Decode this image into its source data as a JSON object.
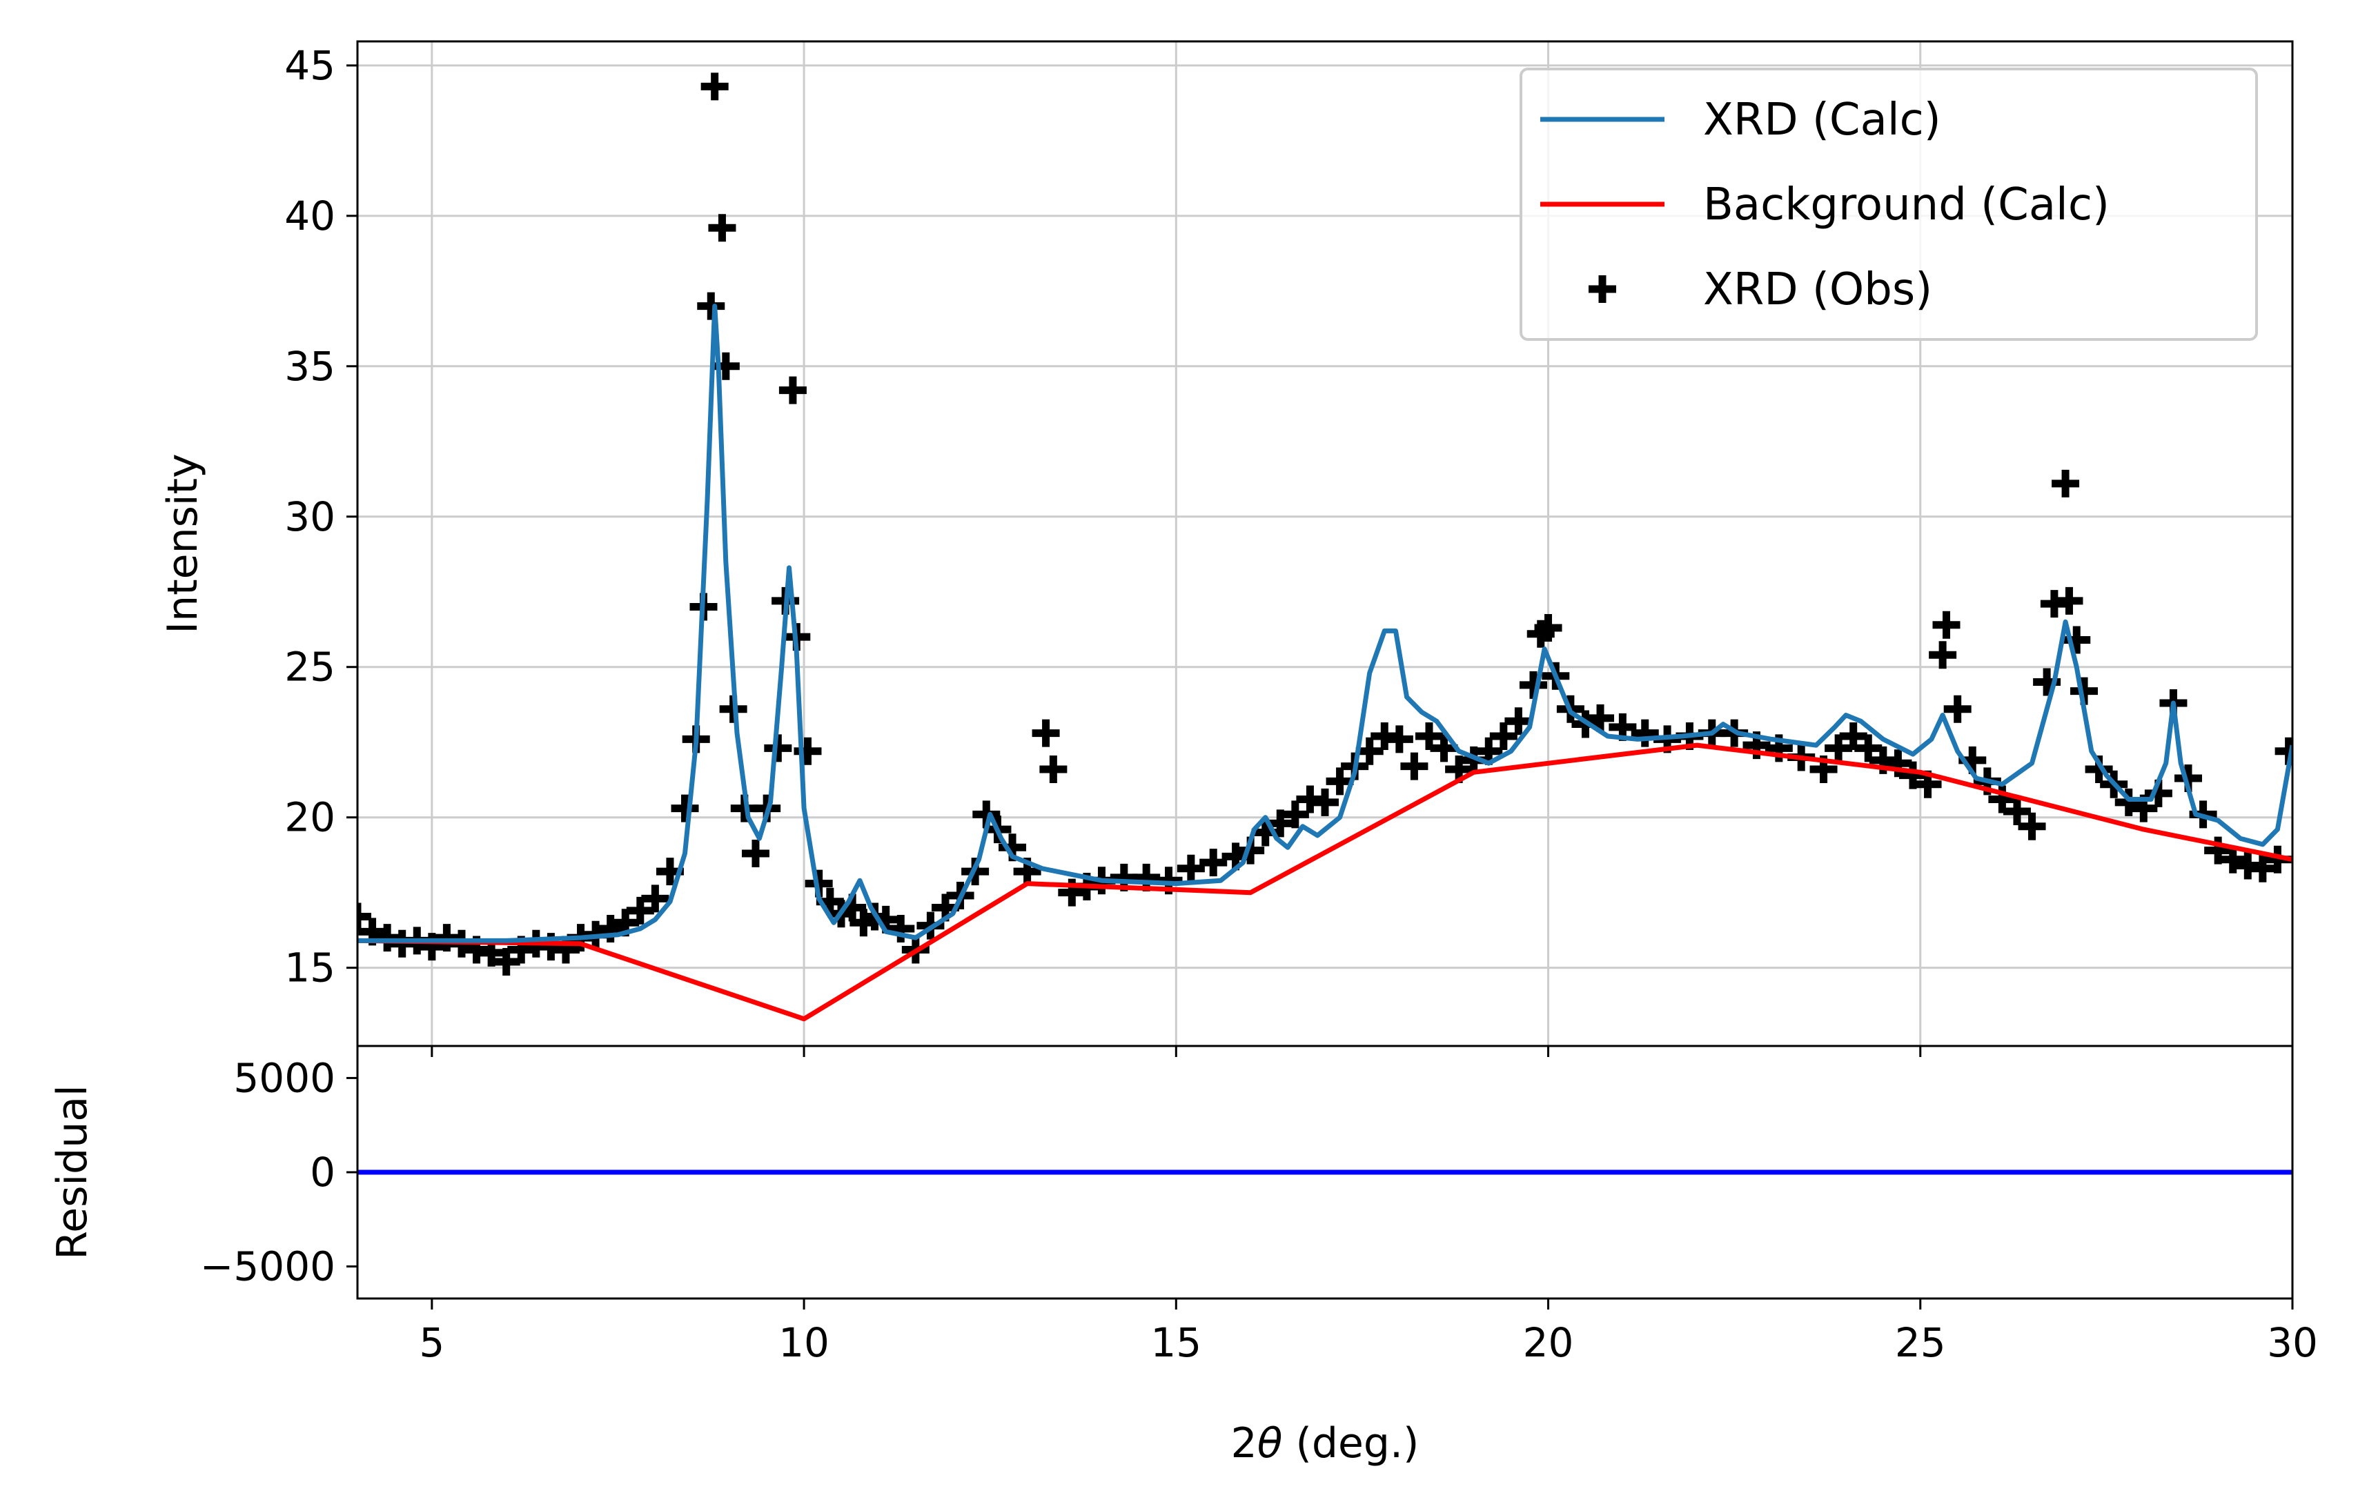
{
  "colors": {
    "calc": "#1f77b4",
    "background": "#ff0000",
    "observed": "#000000",
    "residual": "#0000ff",
    "grid": "#cccccc",
    "legend_border": "#cccccc"
  },
  "chart_data": [
    {
      "type": "line",
      "panel": "main",
      "title": "",
      "xlabel": "",
      "ylabel": "Intensity",
      "xlim": [
        4,
        30
      ],
      "ylim": [
        12.4,
        45.8
      ],
      "grid": true,
      "legend_placement": "top-right",
      "x_ticks": [
        5,
        10,
        15,
        20,
        25,
        30
      ],
      "y_ticks": [
        15,
        20,
        25,
        30,
        35,
        40,
        45
      ],
      "y_tick_labels": [
        "15",
        "20",
        "25",
        "30",
        "35",
        "40",
        "45"
      ],
      "legend": [
        {
          "label": "XRD (Calc)",
          "marker": "line",
          "color": "#1f77b4"
        },
        {
          "label": "Background (Calc)",
          "marker": "line",
          "color": "#ff0000"
        },
        {
          "label": "XRD (Obs)",
          "marker": "plus",
          "color": "#000000"
        }
      ],
      "series": [
        {
          "name": "XRD (Calc)",
          "type": "line",
          "x": [
            4.0,
            5.0,
            6.0,
            7.0,
            7.5,
            7.8,
            8.0,
            8.2,
            8.4,
            8.55,
            8.7,
            8.8,
            8.85,
            8.95,
            9.1,
            9.25,
            9.4,
            9.55,
            9.7,
            9.8,
            9.9,
            10.0,
            10.2,
            10.4,
            10.6,
            10.75,
            10.9,
            11.1,
            11.5,
            12.0,
            12.35,
            12.5,
            12.65,
            12.8,
            13.2,
            14.0,
            15.0,
            15.6,
            15.9,
            16.05,
            16.2,
            16.35,
            16.5,
            16.7,
            16.9,
            17.2,
            17.4,
            17.6,
            17.8,
            17.95,
            18.1,
            18.3,
            18.5,
            18.8,
            19.2,
            19.5,
            19.75,
            19.95,
            20.1,
            20.3,
            20.55,
            20.8,
            21.2,
            21.8,
            22.2,
            22.35,
            22.55,
            23.0,
            23.6,
            23.85,
            24.0,
            24.2,
            24.5,
            24.9,
            25.15,
            25.3,
            25.5,
            25.75,
            26.1,
            26.5,
            26.8,
            26.95,
            27.1,
            27.3,
            27.5,
            27.8,
            28.1,
            28.3,
            28.4,
            28.5,
            28.7,
            29.0,
            29.3,
            29.6,
            29.8,
            30.0
          ],
          "y": [
            15.9,
            15.9,
            15.9,
            16.0,
            16.1,
            16.3,
            16.6,
            17.2,
            18.8,
            22.5,
            30.5,
            37.0,
            35.0,
            28.5,
            22.8,
            20.0,
            19.3,
            20.5,
            25.0,
            28.3,
            25.5,
            20.3,
            17.3,
            16.5,
            17.2,
            17.9,
            17.0,
            16.2,
            16.0,
            16.8,
            18.6,
            20.1,
            19.3,
            18.7,
            18.3,
            17.9,
            17.8,
            17.9,
            18.5,
            19.6,
            20.0,
            19.3,
            19.0,
            19.7,
            19.4,
            20.0,
            21.5,
            24.8,
            26.2,
            26.2,
            24.0,
            23.5,
            23.2,
            22.2,
            21.8,
            22.2,
            23.0,
            25.6,
            24.7,
            23.5,
            23.1,
            22.7,
            22.6,
            22.7,
            22.8,
            23.1,
            22.8,
            22.6,
            22.4,
            23.0,
            23.4,
            23.2,
            22.6,
            22.1,
            22.6,
            23.4,
            22.2,
            21.3,
            21.1,
            21.8,
            24.5,
            26.5,
            25.0,
            22.2,
            21.4,
            20.6,
            20.6,
            21.8,
            23.8,
            21.8,
            20.1,
            19.9,
            19.3,
            19.1,
            19.6,
            22.4
          ]
        },
        {
          "name": "Background (Calc)",
          "type": "line",
          "x": [
            4.0,
            7.0,
            10.0,
            13.0,
            16.0,
            19.0,
            22.0,
            25.0,
            28.0,
            30.0
          ],
          "y": [
            15.9,
            15.8,
            13.3,
            17.8,
            17.5,
            21.5,
            22.4,
            21.5,
            19.6,
            18.6
          ]
        },
        {
          "name": "XRD (Obs)",
          "type": "scatter",
          "marker": "plus",
          "x": [
            4.0,
            4.2,
            4.4,
            4.6,
            4.8,
            5.0,
            5.2,
            5.4,
            5.6,
            5.8,
            6.0,
            6.2,
            6.4,
            6.6,
            6.8,
            7.0,
            7.2,
            7.4,
            7.6,
            7.8,
            8.0,
            8.2,
            8.4,
            8.55,
            8.65,
            8.75,
            8.8,
            8.9,
            8.95,
            9.05,
            9.2,
            9.35,
            9.5,
            9.65,
            9.75,
            9.85,
            9.9,
            10.05,
            10.2,
            10.35,
            10.5,
            10.65,
            10.8,
            10.95,
            11.1,
            11.3,
            11.5,
            11.7,
            11.9,
            12.1,
            12.3,
            12.45,
            12.6,
            12.8,
            13.0,
            13.25,
            13.35,
            13.6,
            13.8,
            14.0,
            14.3,
            14.6,
            14.9,
            15.2,
            15.5,
            15.8,
            16.0,
            16.2,
            16.4,
            16.6,
            16.8,
            17.0,
            17.2,
            17.4,
            17.6,
            17.8,
            18.0,
            18.2,
            18.4,
            18.6,
            18.8,
            19.0,
            19.2,
            19.4,
            19.6,
            19.8,
            19.9,
            20.0,
            20.1,
            20.3,
            20.5,
            20.7,
            21.0,
            21.3,
            21.6,
            21.9,
            22.2,
            22.5,
            22.8,
            23.1,
            23.4,
            23.7,
            23.9,
            24.1,
            24.3,
            24.5,
            24.7,
            24.9,
            25.1,
            25.3,
            25.35,
            25.5,
            25.7,
            25.9,
            26.1,
            26.3,
            26.5,
            26.7,
            26.8,
            26.95,
            27.0,
            27.1,
            27.2,
            27.4,
            27.6,
            27.8,
            28.0,
            28.2,
            28.4,
            28.6,
            28.8,
            29.0,
            29.2,
            29.4,
            29.6,
            29.8,
            29.95
          ],
          "y": [
            16.7,
            16.2,
            16.0,
            15.8,
            15.9,
            15.7,
            16.0,
            15.8,
            15.6,
            15.5,
            15.2,
            15.6,
            15.8,
            15.7,
            15.6,
            16.0,
            16.1,
            16.3,
            16.5,
            16.9,
            17.3,
            18.2,
            20.3,
            22.6,
            27.0,
            37.0,
            44.3,
            39.6,
            35.0,
            23.6,
            20.3,
            18.8,
            20.3,
            22.3,
            27.2,
            34.2,
            26.0,
            22.2,
            17.8,
            17.2,
            16.8,
            17.0,
            16.5,
            16.7,
            16.6,
            16.3,
            15.6,
            16.4,
            17.0,
            17.4,
            18.2,
            20.1,
            19.6,
            19.0,
            18.2,
            22.8,
            21.6,
            17.5,
            17.7,
            17.9,
            18.0,
            18.0,
            17.9,
            18.3,
            18.5,
            18.7,
            18.9,
            19.5,
            19.8,
            20.1,
            20.6,
            20.5,
            21.2,
            21.7,
            22.2,
            22.7,
            22.6,
            21.7,
            22.7,
            22.3,
            21.6,
            21.9,
            22.2,
            22.7,
            23.2,
            24.4,
            26.1,
            26.3,
            24.7,
            23.6,
            23.1,
            23.3,
            23.0,
            22.8,
            22.6,
            22.7,
            22.8,
            22.8,
            22.4,
            22.3,
            22.0,
            21.6,
            22.3,
            22.7,
            22.3,
            21.9,
            21.8,
            21.4,
            21.1,
            25.4,
            26.4,
            23.6,
            21.9,
            21.2,
            20.6,
            20.2,
            19.7,
            24.5,
            27.1,
            31.1,
            27.2,
            25.9,
            24.2,
            21.6,
            21.1,
            20.5,
            20.3,
            20.8,
            23.8,
            21.3,
            20.1,
            18.9,
            18.6,
            18.4,
            18.3,
            18.6,
            22.2
          ]
        }
      ]
    },
    {
      "type": "line",
      "panel": "residual",
      "title": "",
      "xlabel": "2θ (deg.)",
      "ylabel": "Residual",
      "xlim": [
        4,
        30
      ],
      "ylim": [
        -6700,
        6700
      ],
      "grid": false,
      "x_ticks": [
        5,
        10,
        15,
        20,
        25,
        30
      ],
      "x_tick_labels": [
        "5",
        "10",
        "15",
        "20",
        "25",
        "30"
      ],
      "y_ticks": [
        5000,
        0,
        -5000
      ],
      "y_tick_labels": [
        "5000",
        "0",
        "−5000"
      ],
      "series": [
        {
          "type": "line",
          "x": [
            4,
            30
          ],
          "y": [
            0,
            0
          ]
        }
      ]
    }
  ]
}
